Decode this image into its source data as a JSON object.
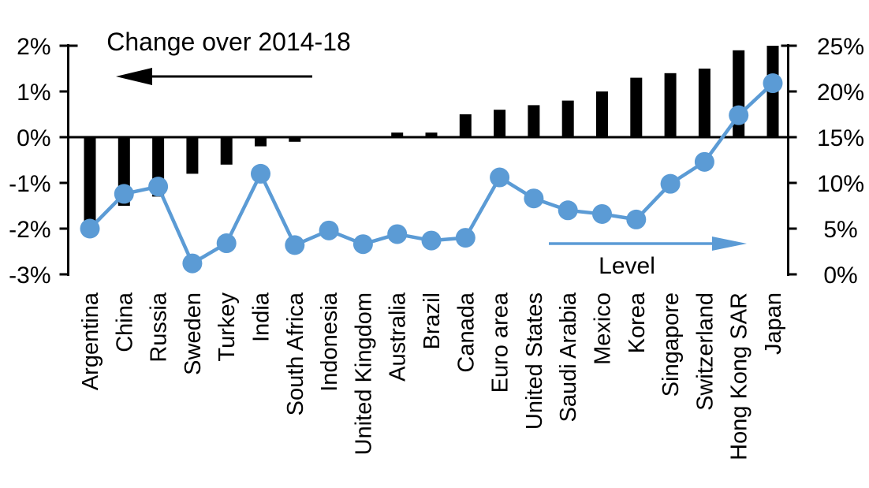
{
  "chart_data": {
    "type": "combo",
    "title": "",
    "categories": [
      "Argentina",
      "China",
      "Russia",
      "Sweden",
      "Turkey",
      "India",
      "South Africa",
      "Indonesia",
      "United Kingdom",
      "Australia",
      "Brazil",
      "Canada",
      "Euro area",
      "United States",
      "Saudi Arabia",
      "Mexico",
      "Korea",
      "Singapore",
      "Switzerland",
      "Hong Kong SAR",
      "Japan"
    ],
    "series": [
      {
        "name": "Change over 2014-18",
        "type": "bar",
        "axis": "left",
        "color": "#000000",
        "values": [
          -1.9,
          -1.5,
          -1.3,
          -0.8,
          -0.6,
          -0.2,
          -0.1,
          0,
          0,
          0.1,
          0.1,
          0.5,
          0.6,
          0.7,
          0.8,
          1.0,
          1.3,
          1.4,
          1.5,
          1.9,
          2.0
        ]
      },
      {
        "name": "Level",
        "type": "line",
        "axis": "right",
        "color": "#5B9BD5",
        "values": [
          5.0,
          8.8,
          9.6,
          1.2,
          3.4,
          11.0,
          3.2,
          4.8,
          3.3,
          4.4,
          3.7,
          4.0,
          10.6,
          8.3,
          7.0,
          6.6,
          6.0,
          9.9,
          12.3,
          17.4,
          20.9
        ]
      }
    ],
    "left_axis": {
      "min": -3,
      "max": 2,
      "tick_step": 1,
      "tick_values": [
        2,
        1,
        0,
        -1,
        -2,
        -3
      ],
      "tick_labels": [
        "2%",
        "1%",
        "0%",
        "-1%",
        "-2%",
        "-3%"
      ],
      "unit": "%"
    },
    "right_axis": {
      "min": 0,
      "max": 25,
      "tick_step": 5,
      "tick_values": [
        25,
        20,
        15,
        10,
        5,
        0
      ],
      "tick_labels": [
        "25%",
        "20%",
        "15%",
        "10%",
        "5%",
        "0%"
      ],
      "unit": "%"
    },
    "annotations": {
      "bar_series_label": "Change over 2014-18",
      "bar_arrow_direction": "left",
      "line_series_label": "Level",
      "line_arrow_direction": "right"
    },
    "grid": "off",
    "legend_position": "in-plot arrow annotations",
    "background": "#ffffff"
  }
}
